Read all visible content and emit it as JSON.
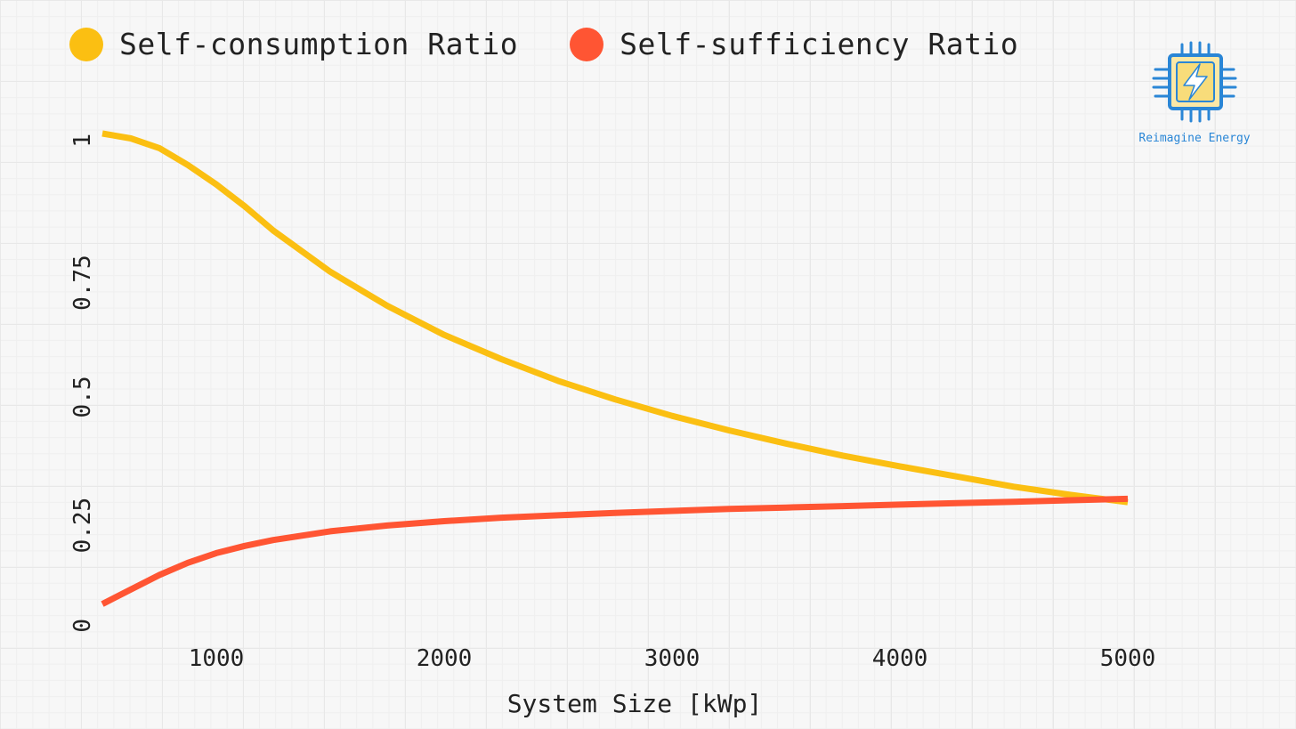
{
  "legend": {
    "items": [
      {
        "label": "Self-consumption Ratio",
        "color": "#FBBF12"
      },
      {
        "label": "Self-sufficiency Ratio",
        "color": "#FF5533"
      }
    ]
  },
  "logo": {
    "text": "Reimagine Energy",
    "icon": "cpu-lightning-icon",
    "color": "#2a86d6"
  },
  "chart_data": {
    "type": "line",
    "title": "",
    "xlabel": "System Size [kWp]",
    "ylabel": "",
    "xlim": [
      500,
      5000
    ],
    "ylim": [
      0,
      1
    ],
    "xticks": [
      1000,
      2000,
      3000,
      4000,
      5000
    ],
    "yticks": [
      0,
      0.25,
      0.5,
      0.75,
      1
    ],
    "ytick_labels": [
      "0",
      "0.25",
      "0.5",
      "0.75",
      "1"
    ],
    "grid": true,
    "legend_position": "top-left",
    "series": [
      {
        "name": "Self-consumption Ratio",
        "color": "#FBBF12",
        "x": [
          500,
          625,
          750,
          875,
          1000,
          1125,
          1250,
          1500,
          1750,
          2000,
          2250,
          2500,
          2750,
          3000,
          3250,
          3500,
          3750,
          4000,
          4250,
          4500,
          4750,
          5000
        ],
        "y": [
          1.0,
          0.99,
          0.97,
          0.935,
          0.895,
          0.85,
          0.8,
          0.715,
          0.645,
          0.585,
          0.535,
          0.49,
          0.452,
          0.418,
          0.388,
          0.361,
          0.336,
          0.314,
          0.293,
          0.272,
          0.255,
          0.24
        ]
      },
      {
        "name": "Self-sufficiency Ratio",
        "color": "#FF5533",
        "x": [
          500,
          625,
          750,
          875,
          1000,
          1125,
          1250,
          1500,
          1750,
          2000,
          2250,
          2500,
          2750,
          3000,
          3250,
          3500,
          3750,
          4000,
          4250,
          4500,
          4750,
          5000
        ],
        "y": [
          0.03,
          0.06,
          0.09,
          0.115,
          0.135,
          0.15,
          0.162,
          0.18,
          0.192,
          0.201,
          0.208,
          0.213,
          0.218,
          0.222,
          0.226,
          0.229,
          0.232,
          0.235,
          0.238,
          0.241,
          0.244,
          0.247
        ]
      }
    ]
  }
}
